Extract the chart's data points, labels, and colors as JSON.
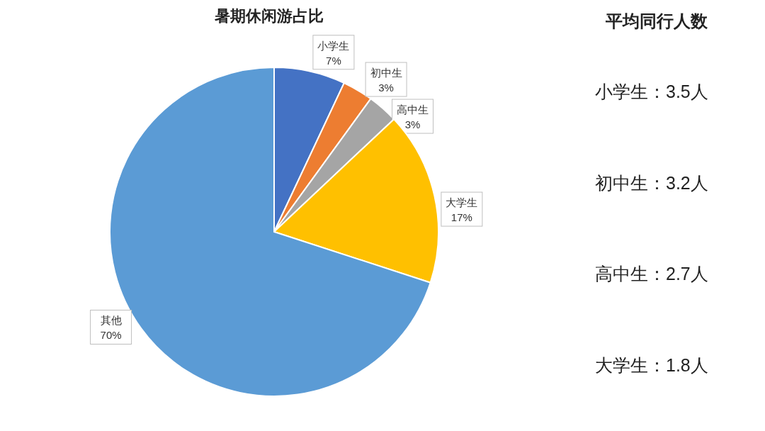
{
  "chart_data": [
    {
      "type": "pie",
      "title": "暑期休闲游占比",
      "categories": [
        "小学生",
        "初中生",
        "高中生",
        "大学生",
        "其他"
      ],
      "values": [
        7,
        3,
        3,
        17,
        70
      ],
      "colors": [
        "#4472c4",
        "#ed7d31",
        "#a5a5a5",
        "#ffc000",
        "#5b9bd5"
      ],
      "value_labels": [
        "7%",
        "3%",
        "3%",
        "17%",
        "70%"
      ]
    },
    {
      "type": "other",
      "title": "平均同行人数",
      "annotations": [
        "小学生：3.5人",
        "初中生：3.2人",
        "高中生：2.7人",
        "大学生：1.8人"
      ]
    }
  ]
}
